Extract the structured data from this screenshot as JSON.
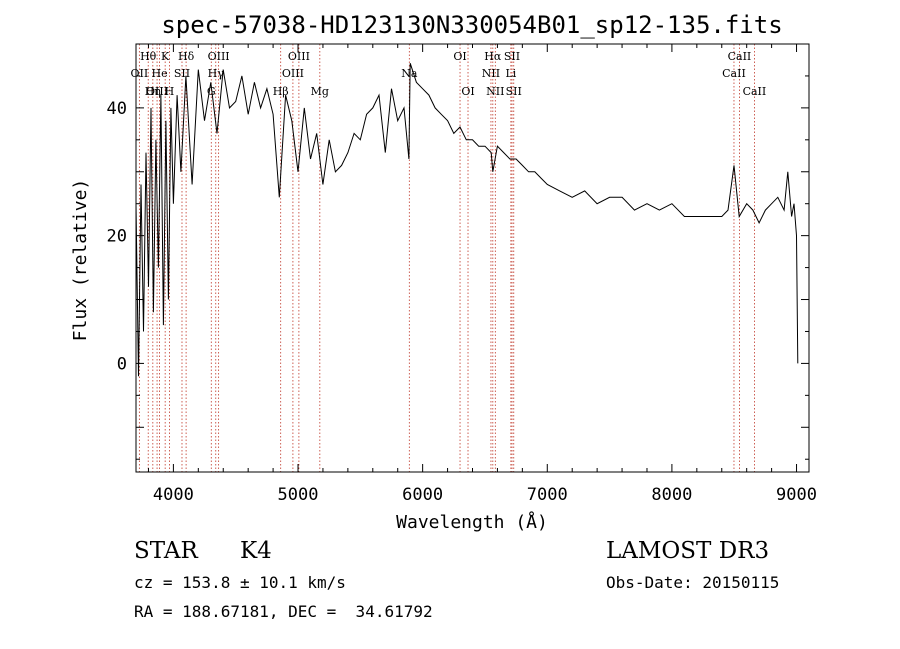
{
  "chart_data": {
    "type": "line",
    "title": "spec-57038-HD123130N330054B01_sp12-135.fits",
    "xlabel": "Wavelength (Å)",
    "ylabel": "Flux (relative)",
    "xlim": [
      3700,
      9100
    ],
    "ylim": [
      -17,
      50
    ],
    "xticks": [
      4000,
      5000,
      6000,
      7000,
      8000,
      9000
    ],
    "yticks": [
      0,
      20,
      40
    ],
    "series": [
      {
        "name": "spectrum",
        "x": [
          3700,
          3720,
          3740,
          3760,
          3780,
          3800,
          3820,
          3840,
          3860,
          3880,
          3900,
          3920,
          3940,
          3960,
          3980,
          4000,
          4030,
          4060,
          4100,
          4150,
          4200,
          4250,
          4300,
          4350,
          4400,
          4450,
          4500,
          4550,
          4600,
          4650,
          4700,
          4750,
          4800,
          4850,
          4900,
          4950,
          5000,
          5050,
          5100,
          5150,
          5200,
          5250,
          5300,
          5350,
          5400,
          5450,
          5500,
          5550,
          5600,
          5650,
          5700,
          5750,
          5800,
          5850,
          5890,
          5900,
          5950,
          6000,
          6050,
          6100,
          6150,
          6200,
          6250,
          6300,
          6350,
          6400,
          6450,
          6500,
          6550,
          6563,
          6600,
          6650,
          6700,
          6750,
          6800,
          6850,
          6900,
          6950,
          7000,
          7100,
          7200,
          7300,
          7400,
          7500,
          7600,
          7700,
          7800,
          7900,
          8000,
          8100,
          8200,
          8300,
          8400,
          8450,
          8498,
          8540,
          8600,
          8650,
          8700,
          8750,
          8800,
          8850,
          8900,
          8930,
          8960,
          8980,
          9000,
          9010
        ],
        "y": [
          25,
          -2,
          28,
          5,
          33,
          12,
          40,
          8,
          35,
          15,
          42,
          6,
          38,
          10,
          40,
          25,
          42,
          30,
          45,
          28,
          46,
          38,
          44,
          36,
          46,
          40,
          41,
          45,
          39,
          44,
          40,
          43,
          39,
          26,
          42,
          38,
          30,
          40,
          32,
          36,
          28,
          35,
          30,
          31,
          33,
          36,
          35,
          39,
          40,
          42,
          33,
          43,
          38,
          40,
          32,
          47,
          44,
          43,
          42,
          40,
          39,
          38,
          36,
          37,
          35,
          35,
          34,
          34,
          33,
          30,
          34,
          33,
          32,
          32,
          31,
          30,
          30,
          29,
          28,
          27,
          26,
          27,
          25,
          26,
          26,
          24,
          25,
          24,
          25,
          23,
          23,
          23,
          23,
          24,
          31,
          23,
          25,
          24,
          22,
          24,
          25,
          26,
          24,
          30,
          23,
          25,
          20,
          0
        ]
      }
    ],
    "lines": [
      {
        "label": "Hθ",
        "x": 3798,
        "row": 1
      },
      {
        "label": "K",
        "x": 3934,
        "row": 1
      },
      {
        "label": "Hδ",
        "x": 4102,
        "row": 1
      },
      {
        "label": "OIII",
        "x": 4363,
        "row": 1
      },
      {
        "label": "OIII",
        "x": 5007,
        "row": 1
      },
      {
        "label": "OI",
        "x": 6300,
        "row": 1
      },
      {
        "label": "Hα",
        "x": 6563,
        "row": 1
      },
      {
        "label": "SII",
        "x": 6717,
        "row": 1
      },
      {
        "label": "CaII",
        "x": 8542,
        "row": 1
      },
      {
        "label": "OII",
        "x": 3727,
        "row": 2
      },
      {
        "label": "He",
        "x": 3889,
        "row": 2
      },
      {
        "label": "SII",
        "x": 4069,
        "row": 2
      },
      {
        "label": "Hγ",
        "x": 4340,
        "row": 2
      },
      {
        "label": "OIII",
        "x": 4959,
        "row": 2
      },
      {
        "label": "Na",
        "x": 5893,
        "row": 2
      },
      {
        "label": "NII",
        "x": 6548,
        "row": 2
      },
      {
        "label": "Li",
        "x": 6708,
        "row": 2
      },
      {
        "label": "CaII",
        "x": 8498,
        "row": 2
      },
      {
        "label": "OIII",
        "x": 3869,
        "row": 3
      },
      {
        "label": "Hη",
        "x": 3835,
        "row": 3
      },
      {
        "label": "H",
        "x": 3968,
        "row": 3
      },
      {
        "label": "G",
        "x": 4304,
        "row": 3
      },
      {
        "label": "Hβ",
        "x": 4861,
        "row": 3
      },
      {
        "label": "Mg",
        "x": 5175,
        "row": 3
      },
      {
        "label": "OI",
        "x": 6364,
        "row": 3
      },
      {
        "label": "NII",
        "x": 6583,
        "row": 3
      },
      {
        "label": "SII",
        "x": 6731,
        "row": 3
      },
      {
        "label": "CaII",
        "x": 8662,
        "row": 3
      }
    ]
  },
  "info": {
    "class": "STAR",
    "subclass": "K4",
    "survey": "LAMOST DR3",
    "cz": "cz = 153.8 ± 10.1 km/s",
    "obs_date": "Obs-Date: 20150115",
    "coords": "RA = 188.67181, DEC =  34.61792"
  }
}
